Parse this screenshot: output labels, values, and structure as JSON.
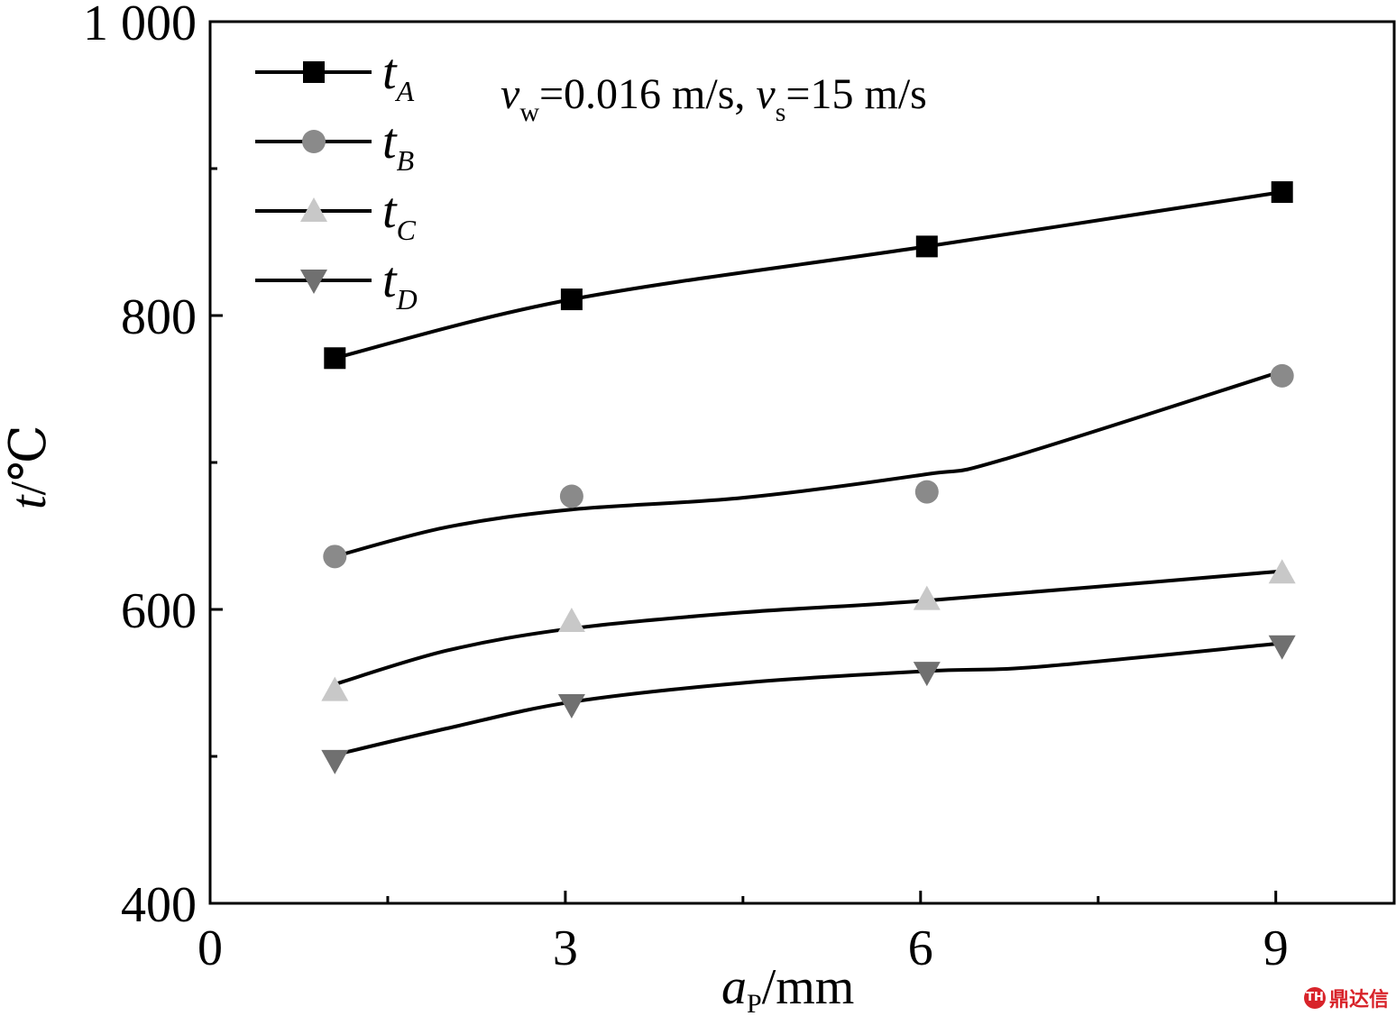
{
  "chart_data": {
    "type": "line",
    "title": "",
    "annotation": {
      "parts": [
        {
          "text": "v",
          "italic": true,
          "sub": false
        },
        {
          "text": "w",
          "italic": false,
          "sub": true
        },
        {
          "text": "=0.016 m/s, ",
          "italic": false,
          "sub": false
        },
        {
          "text": "v",
          "italic": true,
          "sub": false
        },
        {
          "text": "s",
          "italic": false,
          "sub": true
        },
        {
          "text": "=15 m/s",
          "italic": false,
          "sub": false
        }
      ]
    },
    "xlabel": {
      "main": "a",
      "sub": "P",
      "unit": "/mm"
    },
    "ylabel": {
      "main": "t",
      "unit": "/℃"
    },
    "xlim": [
      0,
      10
    ],
    "ylim": [
      400,
      1000
    ],
    "x_ticks": [
      0,
      3,
      6,
      9
    ],
    "x_tick_labels": [
      "0",
      "3",
      "6",
      "9"
    ],
    "x_minor_ticks": [
      1.5,
      4.5,
      7.5
    ],
    "y_ticks": [
      400,
      600,
      800,
      1000
    ],
    "y_tick_labels": [
      "400",
      "600",
      "800",
      "1 000"
    ],
    "y_minor_ticks": [
      500,
      700,
      900
    ],
    "grid": false,
    "legend_position": "top-left",
    "series": [
      {
        "name": "t",
        "sub": "A",
        "marker": "square",
        "color": "#000000",
        "x": [
          1,
          3,
          6,
          9
        ],
        "y": [
          771,
          811,
          847,
          884
        ],
        "fit": [
          [
            1.05,
            771
          ],
          [
            3.05,
            811
          ],
          [
            6.05,
            847
          ],
          [
            9.05,
            884
          ]
        ]
      },
      {
        "name": "t",
        "sub": "B",
        "marker": "circle",
        "color": "#8a8a8a",
        "x": [
          1,
          3,
          6,
          9
        ],
        "y": [
          636,
          677,
          680,
          759
        ],
        "fit": [
          [
            1.05,
            636
          ],
          [
            2,
            656
          ],
          [
            3.05,
            668
          ],
          [
            4.5,
            676
          ],
          [
            6.05,
            692
          ],
          [
            6.7,
            702
          ],
          [
            9.05,
            762
          ]
        ]
      },
      {
        "name": "t",
        "sub": "C",
        "marker": "triangle-up",
        "color": "#c8c8c8",
        "x": [
          1,
          3,
          6,
          9
        ],
        "y": [
          545,
          592,
          607,
          625
        ],
        "fit": [
          [
            1.05,
            549
          ],
          [
            2,
            572
          ],
          [
            3.05,
            587
          ],
          [
            4.5,
            598
          ],
          [
            6.05,
            606
          ],
          [
            9.05,
            626
          ]
        ]
      },
      {
        "name": "t",
        "sub": "D",
        "marker": "triangle-down",
        "color": "#707070",
        "x": [
          1,
          3,
          6,
          9
        ],
        "y": [
          497,
          535,
          557,
          575
        ],
        "fit": [
          [
            1.05,
            501
          ],
          [
            2,
            519
          ],
          [
            3.05,
            537
          ],
          [
            4.5,
            550
          ],
          [
            6.05,
            558
          ],
          [
            7,
            561
          ],
          [
            9.05,
            577
          ]
        ]
      }
    ]
  },
  "watermark": {
    "text": "鼎达信",
    "logo": "TH"
  }
}
